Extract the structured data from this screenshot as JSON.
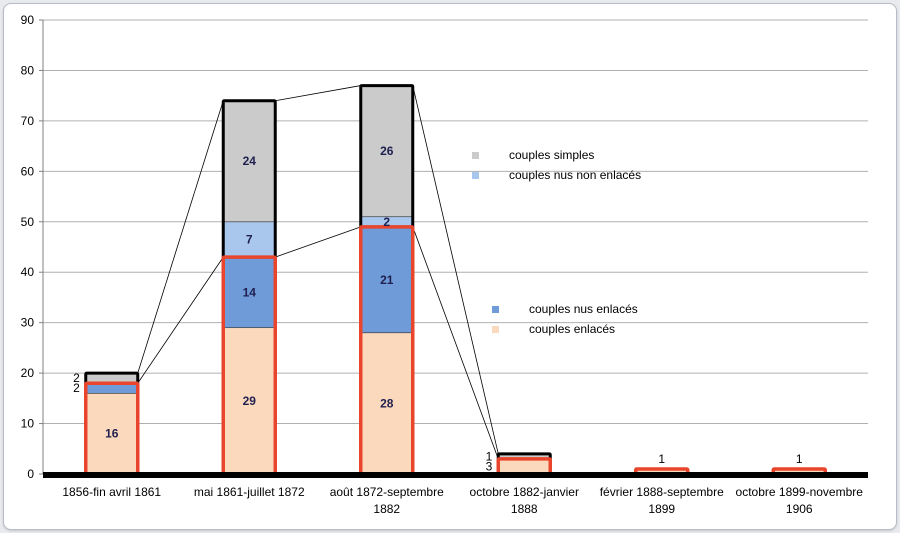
{
  "chart_data": {
    "type": "bar",
    "stacked": true,
    "title": "",
    "xlabel": "",
    "ylabel": "",
    "ylim": [
      0,
      90
    ],
    "yticks": [
      "0",
      "10",
      "20",
      "30",
      "40",
      "50",
      "60",
      "70",
      "80",
      "90"
    ],
    "grid": true,
    "categories": [
      [
        "1856-fin avril 1861"
      ],
      [
        "mai 1861-juillet 1872"
      ],
      [
        "août 1872-septembre",
        "1882"
      ],
      [
        "octobre 1882-janvier",
        "1888"
      ],
      [
        "février 1888-septembre",
        "1899"
      ],
      [
        "octobre 1899-novembre",
        "1906"
      ]
    ],
    "series": [
      {
        "name": "couples enlacés",
        "color": "#fbd9bd",
        "values": [
          16,
          29,
          28,
          3,
          1,
          1
        ]
      },
      {
        "name": "couples nus enlacés",
        "color": "#6f9bd9",
        "values": [
          2,
          14,
          21,
          0,
          0,
          0
        ]
      },
      {
        "name": "couples nus non enlacés",
        "color": "#a9c6ec",
        "values": [
          0,
          7,
          2,
          0,
          0,
          0
        ]
      },
      {
        "name": "couples simples",
        "color": "#cbcbcb",
        "values": [
          2,
          24,
          26,
          1,
          0,
          0
        ]
      }
    ],
    "labels": [
      {
        "bar": 0,
        "series": 0,
        "text": "16",
        "pos": "inside"
      },
      {
        "bar": 0,
        "series": 1,
        "text": "2",
        "pos": "left"
      },
      {
        "bar": 0,
        "series": 3,
        "text": "2",
        "pos": "left"
      },
      {
        "bar": 1,
        "series": 0,
        "text": "29",
        "pos": "inside"
      },
      {
        "bar": 1,
        "series": 1,
        "text": "14",
        "pos": "inside"
      },
      {
        "bar": 1,
        "series": 2,
        "text": "7",
        "pos": "inside"
      },
      {
        "bar": 1,
        "series": 3,
        "text": "24",
        "pos": "inside"
      },
      {
        "bar": 2,
        "series": 0,
        "text": "28",
        "pos": "inside"
      },
      {
        "bar": 2,
        "series": 1,
        "text": "21",
        "pos": "inside"
      },
      {
        "bar": 2,
        "series": 2,
        "text": "2",
        "pos": "inside"
      },
      {
        "bar": 2,
        "series": 3,
        "text": "26",
        "pos": "inside"
      },
      {
        "bar": 3,
        "series": 0,
        "text": "3",
        "pos": "left"
      },
      {
        "bar": 3,
        "series": 3,
        "text": "1",
        "pos": "left"
      },
      {
        "bar": 4,
        "series": 0,
        "text": "1",
        "pos": "above"
      },
      {
        "bar": 5,
        "series": 0,
        "text": "1",
        "pos": "above"
      }
    ],
    "legends": [
      {
        "position": "upper-right",
        "items": [
          "couples simples",
          "couples nus non enlacés"
        ]
      },
      {
        "position": "middle-right",
        "items": [
          "couples nus enlacés",
          "couples enlacés"
        ]
      }
    ],
    "outline_colors": {
      "enlaces": "#e8452c",
      "total": "#000000"
    },
    "baseline_color": "#000000",
    "label_color": "#1f1f4f"
  }
}
